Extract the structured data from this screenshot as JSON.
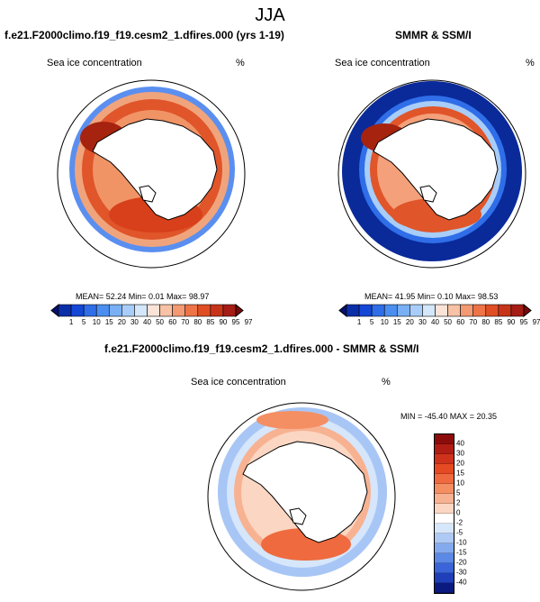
{
  "header": {
    "season": "JJA"
  },
  "panel_model": {
    "title": "f.e21.F2000climo.f19_f19.cesm2_1.dfires.000 (yrs 1-19)",
    "variable": "Sea ice concentration",
    "units": "%",
    "stats": "MEAN= 52.24  Min=  0.01  Max= 98.97"
  },
  "panel_obs": {
    "title": "SMMR & SSM/I",
    "variable": "Sea ice concentration",
    "units": "%",
    "stats": "MEAN= 41.95  Min=  0.10  Max= 98.53"
  },
  "panel_diff": {
    "title": "f.e21.F2000climo.f19_f19.cesm2_1.dfires.000 - SMMR & SSM/I",
    "variable": "Sea ice concentration",
    "units": "%",
    "stats": "MIN = -45.40 MAX =  20.35"
  },
  "colorbar_conc": {
    "ticks": [
      "1",
      "5",
      "10",
      "15",
      "20",
      "30",
      "40",
      "50",
      "60",
      "70",
      "80",
      "85",
      "90",
      "95",
      "97"
    ],
    "colors": [
      "#08106e",
      "#0a2ea8",
      "#1447d6",
      "#2f6ee8",
      "#4b8ef0",
      "#79b0f5",
      "#a8cdf8",
      "#d5e7fb",
      "#fbe3d8",
      "#f8c2a6",
      "#f49a73",
      "#ee7448",
      "#e04f24",
      "#c8341a",
      "#a51d14",
      "#7a0a0a"
    ]
  },
  "colorbar_diff": {
    "ticks": [
      "40",
      "30",
      "20",
      "15",
      "10",
      "5",
      "2",
      "0",
      "-2",
      "-5",
      "-10",
      "-15",
      "-20",
      "-30",
      "-40"
    ],
    "colors": [
      "#8c0c0c",
      "#b01d14",
      "#cf321a",
      "#e64a22",
      "#ef6a3e",
      "#f48f63",
      "#f7b292",
      "#fbd6c2",
      "#ffffff",
      "#d6e6fb",
      "#aec9f4",
      "#84aaee",
      "#5c88e6",
      "#3a64d8",
      "#1e3fb8",
      "#0b1a80"
    ]
  },
  "maps": {
    "model": {
      "pattern": "sea-ice-model",
      "ring_color": "#2a5fe0"
    },
    "obs": {
      "pattern": "sea-ice-obs",
      "ring_color": "#0a2a9a"
    },
    "diff": {
      "pattern": "sea-ice-diff",
      "ring_color": "#a8c6f5"
    }
  }
}
